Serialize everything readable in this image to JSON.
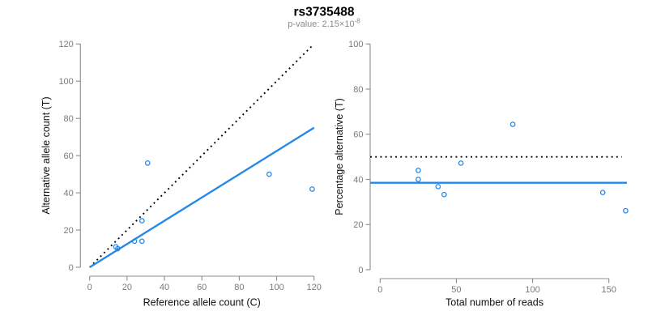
{
  "figure": {
    "title": "rs3735488",
    "p_value_label": "p-value: 2.15×10",
    "p_value_exponent": "-8"
  },
  "colors": {
    "accent_blue": "#2388E8",
    "identity_black": "#000000",
    "axis_gray": "#8C8C8C",
    "tick_label_gray": "#7A7A7A",
    "subtitle_gray": "#8A8A8A",
    "axis_title_black": "#111111",
    "background": "#FFFFFF"
  },
  "chart_data": [
    {
      "type": "scatter",
      "title": "",
      "xlabel": "Reference allele count (C)",
      "ylabel": "Alternative allele count (T)",
      "xlim": [
        0,
        120
      ],
      "ylim": [
        0,
        120
      ],
      "xticks": [
        0,
        20,
        40,
        60,
        80,
        100,
        120
      ],
      "yticks": [
        0,
        20,
        40,
        60,
        80,
        100,
        120
      ],
      "grid": false,
      "legend": "none",
      "marker": "open-circle",
      "points": [
        [
          31,
          56
        ],
        [
          96,
          50
        ],
        [
          119,
          42
        ],
        [
          28,
          25
        ],
        [
          24,
          14
        ],
        [
          28,
          14
        ],
        [
          14,
          11
        ],
        [
          15,
          10
        ]
      ],
      "lines": [
        {
          "name": "identity-line",
          "style": "dotted",
          "color": "#000000",
          "from": [
            0,
            0
          ],
          "to": [
            119.5,
            119.5
          ]
        },
        {
          "name": "fitted-line",
          "style": "solid",
          "color": "#2388E8",
          "from": [
            0,
            0
          ],
          "to": [
            120,
            75
          ]
        }
      ]
    },
    {
      "type": "scatter",
      "title": "",
      "xlabel": "Total number of reads",
      "ylabel": "Percentage alternative (T)",
      "xlim": [
        0,
        150
      ],
      "ylim": [
        0,
        100
      ],
      "xticks": [
        0,
        50,
        100,
        150
      ],
      "yticks": [
        0,
        20,
        40,
        60,
        80,
        100
      ],
      "grid": false,
      "legend": "none",
      "marker": "open-circle",
      "points": [
        [
          87,
          64.4
        ],
        [
          146,
          34.2
        ],
        [
          161,
          26.1
        ],
        [
          53,
          47.2
        ],
        [
          38,
          36.8
        ],
        [
          42,
          33.3
        ],
        [
          25,
          44
        ],
        [
          25,
          40
        ]
      ],
      "lines": [
        {
          "name": "expected-50-percent-line",
          "style": "dotted",
          "color": "#000000",
          "from": [
            -6.5,
            50
          ],
          "to": [
            158.5,
            50
          ]
        },
        {
          "name": "mean-percentage-line",
          "style": "solid",
          "color": "#2388E8",
          "from": [
            -6.5,
            38.5
          ],
          "to": [
            161.8,
            38.5
          ]
        }
      ]
    }
  ]
}
